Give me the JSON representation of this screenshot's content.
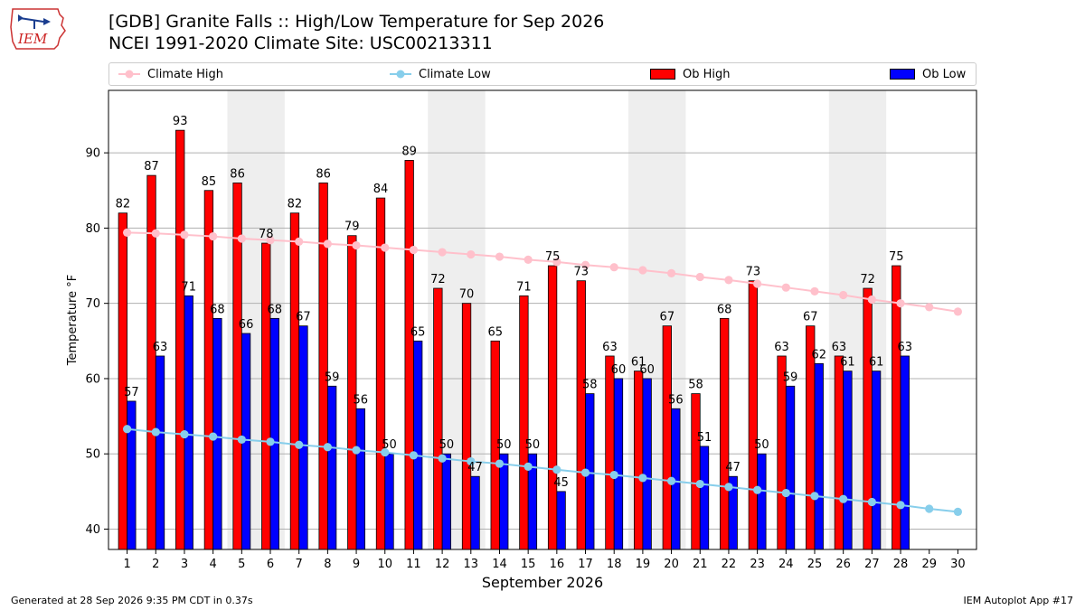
{
  "header": {
    "logo_text": "IEM",
    "title_line1": "[GDB] Granite Falls :: High/Low Temperature for Sep 2026",
    "title_line2": "NCEI 1991-2020 Climate Site: USC00213311"
  },
  "footer": {
    "generated": "Generated at 28 Sep 2026 9:35 PM CDT in 0.37s",
    "app": "IEM Autoplot App #17"
  },
  "colors": {
    "ob_high": "#ff0000",
    "ob_low": "#0000ff",
    "climate_high": "#ffc0cb",
    "climate_low": "#87ceeb",
    "weekend_shade": "#eeeeee"
  },
  "chart_data": {
    "type": "bar",
    "xlabel": "September 2026",
    "ylabel": "Temperature °F",
    "ylim": [
      37.3,
      98.3
    ],
    "yticks": [
      40,
      50,
      60,
      70,
      80,
      90
    ],
    "grid": "horizontal",
    "legend_position": "top",
    "categories": [
      "1",
      "2",
      "3",
      "4",
      "5",
      "6",
      "7",
      "8",
      "9",
      "10",
      "11",
      "12",
      "13",
      "14",
      "15",
      "16",
      "17",
      "18",
      "19",
      "20",
      "21",
      "22",
      "23",
      "24",
      "25",
      "26",
      "27",
      "28",
      "29",
      "30"
    ],
    "shaded_days": [
      [
        5,
        6
      ],
      [
        12,
        13
      ],
      [
        19,
        20
      ],
      [
        26,
        27
      ]
    ],
    "series": [
      {
        "name": "Climate High",
        "kind": "line",
        "values": [
          79.4,
          79.3,
          79.1,
          78.9,
          78.6,
          78.4,
          78.2,
          77.9,
          77.7,
          77.4,
          77.1,
          76.8,
          76.5,
          76.2,
          75.8,
          75.5,
          75.1,
          74.8,
          74.4,
          74.0,
          73.5,
          73.1,
          72.6,
          72.1,
          71.6,
          71.1,
          70.5,
          70.0,
          69.5,
          68.9
        ]
      },
      {
        "name": "Climate Low",
        "kind": "line",
        "values": [
          53.3,
          52.9,
          52.6,
          52.3,
          51.9,
          51.6,
          51.2,
          50.9,
          50.5,
          50.2,
          49.8,
          49.4,
          49.0,
          48.7,
          48.3,
          47.9,
          47.5,
          47.2,
          46.8,
          46.4,
          46.0,
          45.6,
          45.2,
          44.8,
          44.4,
          44.0,
          43.6,
          43.2,
          42.7,
          42.3
        ]
      },
      {
        "name": "Ob High",
        "kind": "bar",
        "values": [
          82,
          87,
          93,
          85,
          86,
          78,
          82,
          86,
          79,
          84,
          89,
          72,
          70,
          65,
          71,
          75,
          73,
          63,
          61,
          67,
          58,
          68,
          73,
          63,
          67,
          63,
          72,
          75,
          null,
          null
        ]
      },
      {
        "name": "Ob Low",
        "kind": "bar",
        "values": [
          57,
          63,
          71,
          68,
          66,
          68,
          67,
          59,
          56,
          50,
          65,
          50,
          47,
          50,
          50,
          45,
          58,
          60,
          60,
          56,
          51,
          47,
          50,
          59,
          62,
          61,
          61,
          63,
          null,
          null
        ]
      }
    ]
  }
}
